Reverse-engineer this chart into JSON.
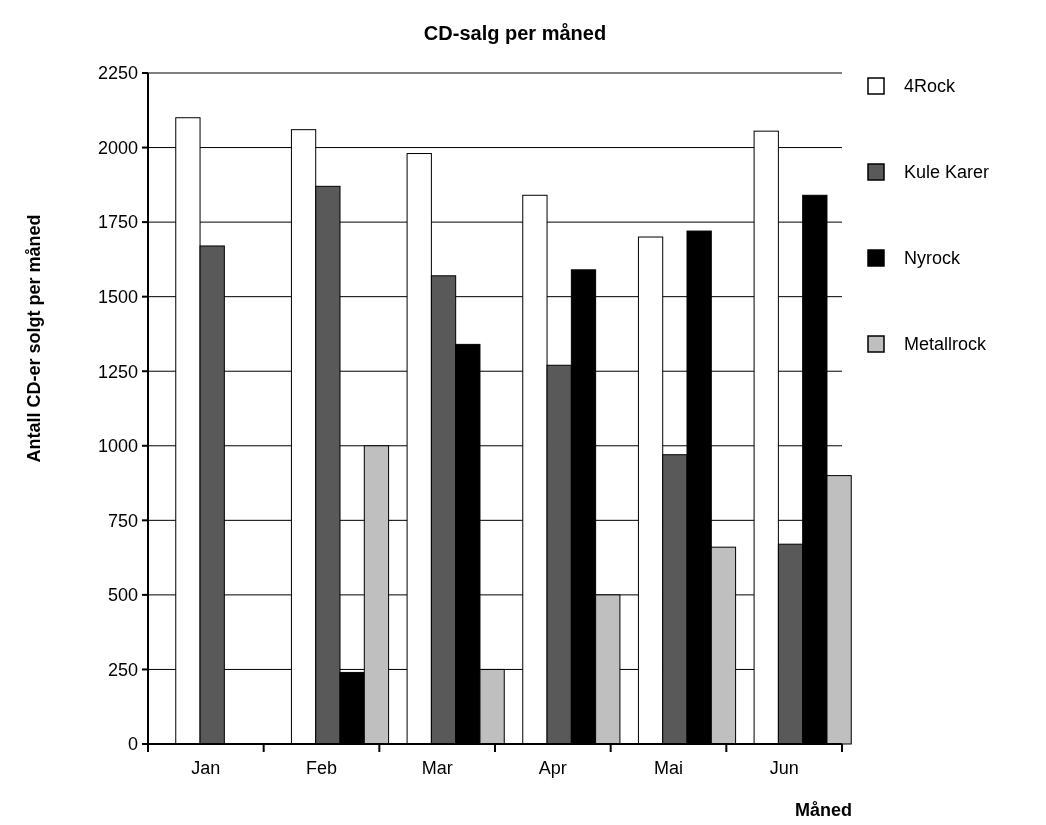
{
  "chart_data": {
    "type": "bar",
    "title": "CD-salg per måned",
    "xlabel": "Måned",
    "ylabel": "Antall CD-er solgt per måned",
    "categories": [
      "Jan",
      "Feb",
      "Mar",
      "Apr",
      "Mai",
      "Jun"
    ],
    "series": [
      {
        "name": "4Rock",
        "color": "#ffffff",
        "values": [
          2100,
          2060,
          1980,
          1840,
          1700,
          2055
        ]
      },
      {
        "name": "Kule Karer",
        "color": "#595959",
        "values": [
          1670,
          1870,
          1570,
          1270,
          970,
          670
        ]
      },
      {
        "name": "Nyrock",
        "color": "#000000",
        "values": [
          0,
          240,
          1340,
          1590,
          1720,
          1840
        ]
      },
      {
        "name": "Metallrock",
        "color": "#bfbfbf",
        "values": [
          0,
          1000,
          250,
          500,
          660,
          900
        ]
      }
    ],
    "ylim": [
      0,
      2250
    ],
    "yticks": [
      0,
      250,
      500,
      750,
      1000,
      1250,
      1500,
      1750,
      2000,
      2250
    ],
    "grid": "y",
    "legend": "right"
  }
}
